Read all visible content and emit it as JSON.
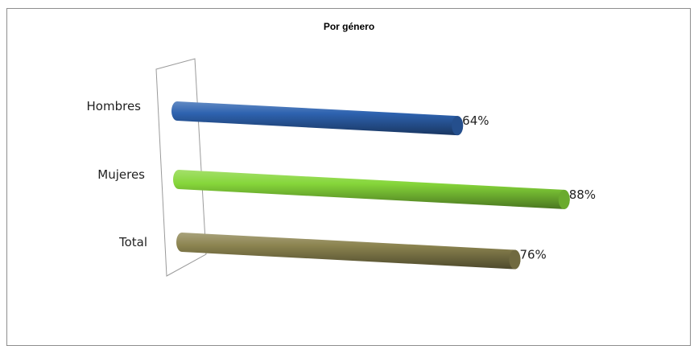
{
  "chart_data": {
    "type": "bar",
    "orientation": "horizontal",
    "title": "Por género",
    "categories": [
      "Hombres",
      "Mujeres",
      "Total"
    ],
    "values": [
      64,
      88,
      76
    ],
    "value_labels": [
      "64%",
      "88%",
      "76%"
    ],
    "unit": "%",
    "xlim": [
      0,
      100
    ],
    "colors": [
      "#2e63b0",
      "#86d63a",
      "#8c8450"
    ],
    "style": "3d-cylinder",
    "legend": "none",
    "grid": false
  }
}
